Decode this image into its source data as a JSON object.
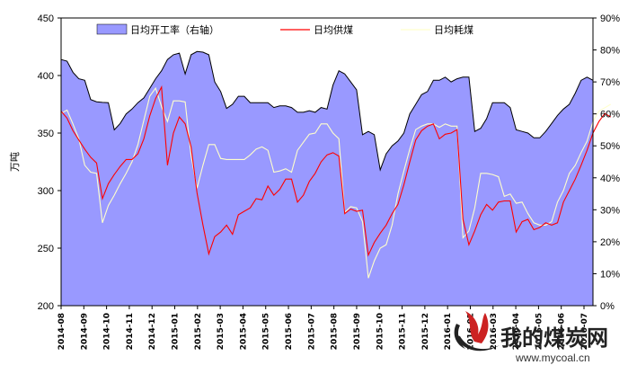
{
  "chart_data": {
    "type": "area+line",
    "ylabel": "万吨",
    "ylim": [
      200,
      450
    ],
    "y_ticks": [
      "200",
      "250",
      "300",
      "350",
      "400",
      "450"
    ],
    "y2lim": [
      0,
      90
    ],
    "y2_ticks": [
      "0%",
      "10%",
      "20%",
      "30%",
      "40%",
      "50%",
      "60%",
      "70%",
      "80%",
      "90%"
    ],
    "x_ticks": [
      "2014-08",
      "2014-09",
      "2014-10",
      "2014-11",
      "2014-12",
      "2015-01",
      "2015-02",
      "2015-03",
      "2015-04",
      "2015-05",
      "2015-06",
      "2015-07",
      "2015-08",
      "2015-09",
      "2015-10",
      "2015-11",
      "2015-12",
      "2016-01",
      "2016-02",
      "2016-03",
      "2016-04",
      "2016-05",
      "2016-06",
      "2016-07"
    ],
    "legend": "top",
    "series": [
      {
        "name": "日均开工率（右轴）",
        "axis": "right",
        "color": "#9999ff",
        "values": [
          77,
          76.5,
          73,
          71,
          70.5,
          64.5,
          63.8,
          63.6,
          63.5,
          55,
          57,
          60,
          61.5,
          63.5,
          65,
          68,
          71,
          73.5,
          77,
          78.5,
          79,
          72.5,
          78.5,
          79.5,
          79.3,
          78.5,
          70,
          67,
          61.7,
          63,
          65.5,
          65.5,
          63.5,
          63.5,
          63.5,
          63.5,
          62,
          62.5,
          62.5,
          62,
          60.5,
          60.5,
          61,
          60.5,
          62,
          61.5,
          69,
          73.5,
          72.5,
          70,
          67.5,
          53.5,
          54.5,
          53.5,
          42.5,
          47.5,
          50,
          51.5,
          54,
          60,
          63,
          66,
          67,
          70.5,
          70.5,
          71.5,
          70,
          71,
          71.5,
          71.5,
          54.5,
          55.5,
          58.5,
          63.5,
          63.5,
          63.5,
          62,
          55,
          54.5,
          54,
          52.5,
          52.5,
          54.5,
          57,
          59.5,
          61.5,
          63,
          66.5,
          70.5,
          71.5,
          70.5
        ]
      },
      {
        "name": "日均供煤",
        "axis": "left",
        "color": "#ff0000",
        "values": [
          369,
          363,
          352,
          344,
          336,
          329,
          324,
          293,
          306,
          314,
          321,
          327,
          327,
          332,
          345,
          365,
          380,
          390,
          322,
          350,
          364,
          358,
          338,
          298,
          270,
          245,
          260,
          264,
          270,
          262,
          279,
          282,
          285,
          293,
          292,
          304,
          296,
          301,
          310,
          310,
          290,
          296,
          308,
          315,
          325,
          331,
          333,
          330,
          280,
          284,
          282,
          283,
          244,
          255,
          263,
          270,
          280,
          288,
          305,
          325,
          344,
          352,
          356,
          358,
          345,
          349,
          350,
          353,
          275,
          253,
          265,
          279,
          288,
          283,
          290,
          291,
          291,
          264,
          273,
          275,
          266,
          268,
          272,
          270,
          272,
          290,
          300,
          310,
          322,
          335,
          350,
          360,
          367,
          364
        ]
      },
      {
        "name": "日均耗煤",
        "axis": "left",
        "color": "#ffffcc",
        "values": [
          367,
          370,
          358,
          345,
          322,
          316,
          315,
          272,
          287,
          296,
          306,
          315,
          325,
          340,
          361,
          382,
          389,
          373,
          360,
          378,
          378,
          377,
          330,
          302,
          322,
          340,
          340,
          328,
          327,
          327,
          327,
          327,
          331,
          336,
          338,
          335,
          316,
          317,
          319,
          316,
          335,
          342,
          349,
          350,
          358,
          358,
          350,
          345,
          281,
          286,
          285,
          273,
          224,
          239,
          250,
          253,
          270,
          297,
          317,
          336,
          353,
          356,
          358,
          358,
          355,
          358,
          356,
          356,
          259,
          265,
          285,
          315,
          315,
          314,
          312,
          295,
          297,
          289,
          290,
          280,
          272,
          270,
          270,
          273,
          290,
          300,
          315,
          322,
          333,
          343,
          360,
          369,
          372,
          375
        ]
      }
    ]
  },
  "watermark": {
    "cn": "我的煤炭网",
    "url": "www.mycoal.cn",
    "colors": {
      "flame": "#cc2222",
      "swoosh": "#222222"
    }
  }
}
